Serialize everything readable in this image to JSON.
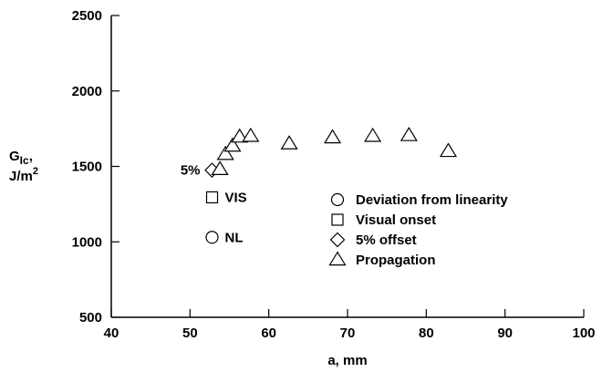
{
  "chart_data": {
    "type": "scatter",
    "title": "",
    "xlabel": "a, mm",
    "ylabel_main": "G",
    "ylabel_sub": "Ic",
    "ylabel_suffix": ",",
    "ylabel_unit_base": "J/m",
    "ylabel_unit_exp": "2",
    "xlim": [
      40,
      100
    ],
    "ylim": [
      500,
      2500
    ],
    "xticks": [
      40,
      50,
      60,
      70,
      80,
      90,
      100
    ],
    "yticks": [
      500,
      1000,
      1500,
      2000,
      2500
    ],
    "grid": false,
    "legend_position": "center-right",
    "series": [
      {
        "name": "Deviation from linearity",
        "marker": "circle",
        "points": [
          {
            "x": 52.8,
            "y": 1030
          }
        ]
      },
      {
        "name": "Visual onset",
        "marker": "square",
        "points": [
          {
            "x": 52.8,
            "y": 1295
          }
        ]
      },
      {
        "name": "5% offset",
        "marker": "diamond",
        "points": [
          {
            "x": 52.8,
            "y": 1475
          }
        ]
      },
      {
        "name": "Propagation",
        "marker": "triangle",
        "points": [
          {
            "x": 53.8,
            "y": 1480
          },
          {
            "x": 54.5,
            "y": 1580
          },
          {
            "x": 55.4,
            "y": 1635
          },
          {
            "x": 56.3,
            "y": 1695
          },
          {
            "x": 57.7,
            "y": 1700
          },
          {
            "x": 62.6,
            "y": 1650
          },
          {
            "x": 68.1,
            "y": 1690
          },
          {
            "x": 73.2,
            "y": 1700
          },
          {
            "x": 77.8,
            "y": 1705
          },
          {
            "x": 82.8,
            "y": 1600
          }
        ]
      }
    ],
    "annotations": [
      {
        "text": "5%",
        "x": 52.8,
        "y": 1475,
        "side": "left"
      },
      {
        "text": "VIS",
        "x": 52.8,
        "y": 1295,
        "side": "right"
      },
      {
        "text": "NL",
        "x": 52.8,
        "y": 1030,
        "side": "right"
      }
    ]
  }
}
